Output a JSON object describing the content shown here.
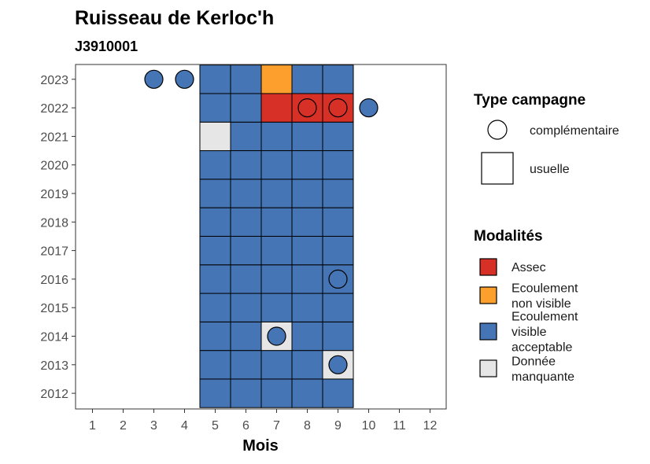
{
  "chart_data": {
    "type": "heatmap",
    "title": "Ruisseau de Kerloc'h",
    "subtitle": "J3910001",
    "xlabel": "Mois",
    "ylabel": "",
    "x": [
      1,
      2,
      3,
      4,
      5,
      6,
      7,
      8,
      9,
      10,
      11,
      12
    ],
    "y": [
      2012,
      2013,
      2014,
      2015,
      2016,
      2017,
      2018,
      2019,
      2020,
      2021,
      2022,
      2023
    ],
    "grid": false,
    "legend_position": "right",
    "colors": {
      "Assec": "#d73027",
      "Ecoulement non visible": "#fd9f2d",
      "Ecoulement visible acceptable": "#4575b4",
      "Donnée manquante": "#e6e6e6"
    },
    "usuelle": [
      {
        "year": 2012,
        "values": {
          "5": "Ecoulement visible acceptable",
          "6": "Ecoulement visible acceptable",
          "7": "Ecoulement visible acceptable",
          "8": "Ecoulement visible acceptable",
          "9": "Ecoulement visible acceptable"
        }
      },
      {
        "year": 2013,
        "values": {
          "5": "Ecoulement visible acceptable",
          "6": "Ecoulement visible acceptable",
          "7": "Ecoulement visible acceptable",
          "8": "Ecoulement visible acceptable",
          "9": "Donnée manquante"
        }
      },
      {
        "year": 2014,
        "values": {
          "5": "Ecoulement visible acceptable",
          "6": "Ecoulement visible acceptable",
          "7": "Donnée manquante",
          "8": "Ecoulement visible acceptable",
          "9": "Ecoulement visible acceptable"
        }
      },
      {
        "year": 2015,
        "values": {
          "5": "Ecoulement visible acceptable",
          "6": "Ecoulement visible acceptable",
          "7": "Ecoulement visible acceptable",
          "8": "Ecoulement visible acceptable",
          "9": "Ecoulement visible acceptable"
        }
      },
      {
        "year": 2016,
        "values": {
          "5": "Ecoulement visible acceptable",
          "6": "Ecoulement visible acceptable",
          "7": "Ecoulement visible acceptable",
          "8": "Ecoulement visible acceptable",
          "9": "Ecoulement visible acceptable"
        }
      },
      {
        "year": 2017,
        "values": {
          "5": "Ecoulement visible acceptable",
          "6": "Ecoulement visible acceptable",
          "7": "Ecoulement visible acceptable",
          "8": "Ecoulement visible acceptable",
          "9": "Ecoulement visible acceptable"
        }
      },
      {
        "year": 2018,
        "values": {
          "5": "Ecoulement visible acceptable",
          "6": "Ecoulement visible acceptable",
          "7": "Ecoulement visible acceptable",
          "8": "Ecoulement visible acceptable",
          "9": "Ecoulement visible acceptable"
        }
      },
      {
        "year": 2019,
        "values": {
          "5": "Ecoulement visible acceptable",
          "6": "Ecoulement visible acceptable",
          "7": "Ecoulement visible acceptable",
          "8": "Ecoulement visible acceptable",
          "9": "Ecoulement visible acceptable"
        }
      },
      {
        "year": 2020,
        "values": {
          "5": "Ecoulement visible acceptable",
          "6": "Ecoulement visible acceptable",
          "7": "Ecoulement visible acceptable",
          "8": "Ecoulement visible acceptable",
          "9": "Ecoulement visible acceptable"
        }
      },
      {
        "year": 2021,
        "values": {
          "5": "Donnée manquante",
          "6": "Ecoulement visible acceptable",
          "7": "Ecoulement visible acceptable",
          "8": "Ecoulement visible acceptable",
          "9": "Ecoulement visible acceptable"
        }
      },
      {
        "year": 2022,
        "values": {
          "5": "Ecoulement visible acceptable",
          "6": "Ecoulement visible acceptable",
          "7": "Assec",
          "8": "Assec",
          "9": "Assec"
        }
      },
      {
        "year": 2023,
        "values": {
          "5": "Ecoulement visible acceptable",
          "6": "Ecoulement visible acceptable",
          "7": "Ecoulement non visible",
          "8": "Ecoulement visible acceptable",
          "9": "Ecoulement visible acceptable"
        }
      }
    ],
    "complementaire": [
      {
        "year": 2023,
        "month": 3,
        "modalite": "Ecoulement visible acceptable"
      },
      {
        "year": 2023,
        "month": 4,
        "modalite": "Ecoulement visible acceptable"
      },
      {
        "year": 2022,
        "month": 8,
        "modalite": "Assec"
      },
      {
        "year": 2022,
        "month": 9,
        "modalite": "Assec"
      },
      {
        "year": 2022,
        "month": 10,
        "modalite": "Ecoulement visible acceptable"
      },
      {
        "year": 2016,
        "month": 9,
        "modalite": "Ecoulement visible acceptable"
      },
      {
        "year": 2014,
        "month": 7,
        "modalite": "Ecoulement visible acceptable"
      },
      {
        "year": 2013,
        "month": 9,
        "modalite": "Ecoulement visible acceptable"
      }
    ],
    "legends": {
      "type_campagne": {
        "title": "Type campagne",
        "items": [
          {
            "key": "complementaire",
            "label": "complémentaire"
          },
          {
            "key": "usuelle",
            "label": "usuelle"
          }
        ]
      },
      "modalites": {
        "title": "Modalités",
        "items": [
          {
            "key": "Assec",
            "lines": [
              "Assec"
            ]
          },
          {
            "key": "Ecoulement non visible",
            "lines": [
              "Ecoulement",
              "non visible"
            ]
          },
          {
            "key": "Ecoulement visible acceptable",
            "lines": [
              "Ecoulement",
              "visible",
              "acceptable"
            ]
          },
          {
            "key": "Donnée manquante",
            "lines": [
              "Donnée",
              "manquante"
            ]
          }
        ]
      }
    }
  }
}
